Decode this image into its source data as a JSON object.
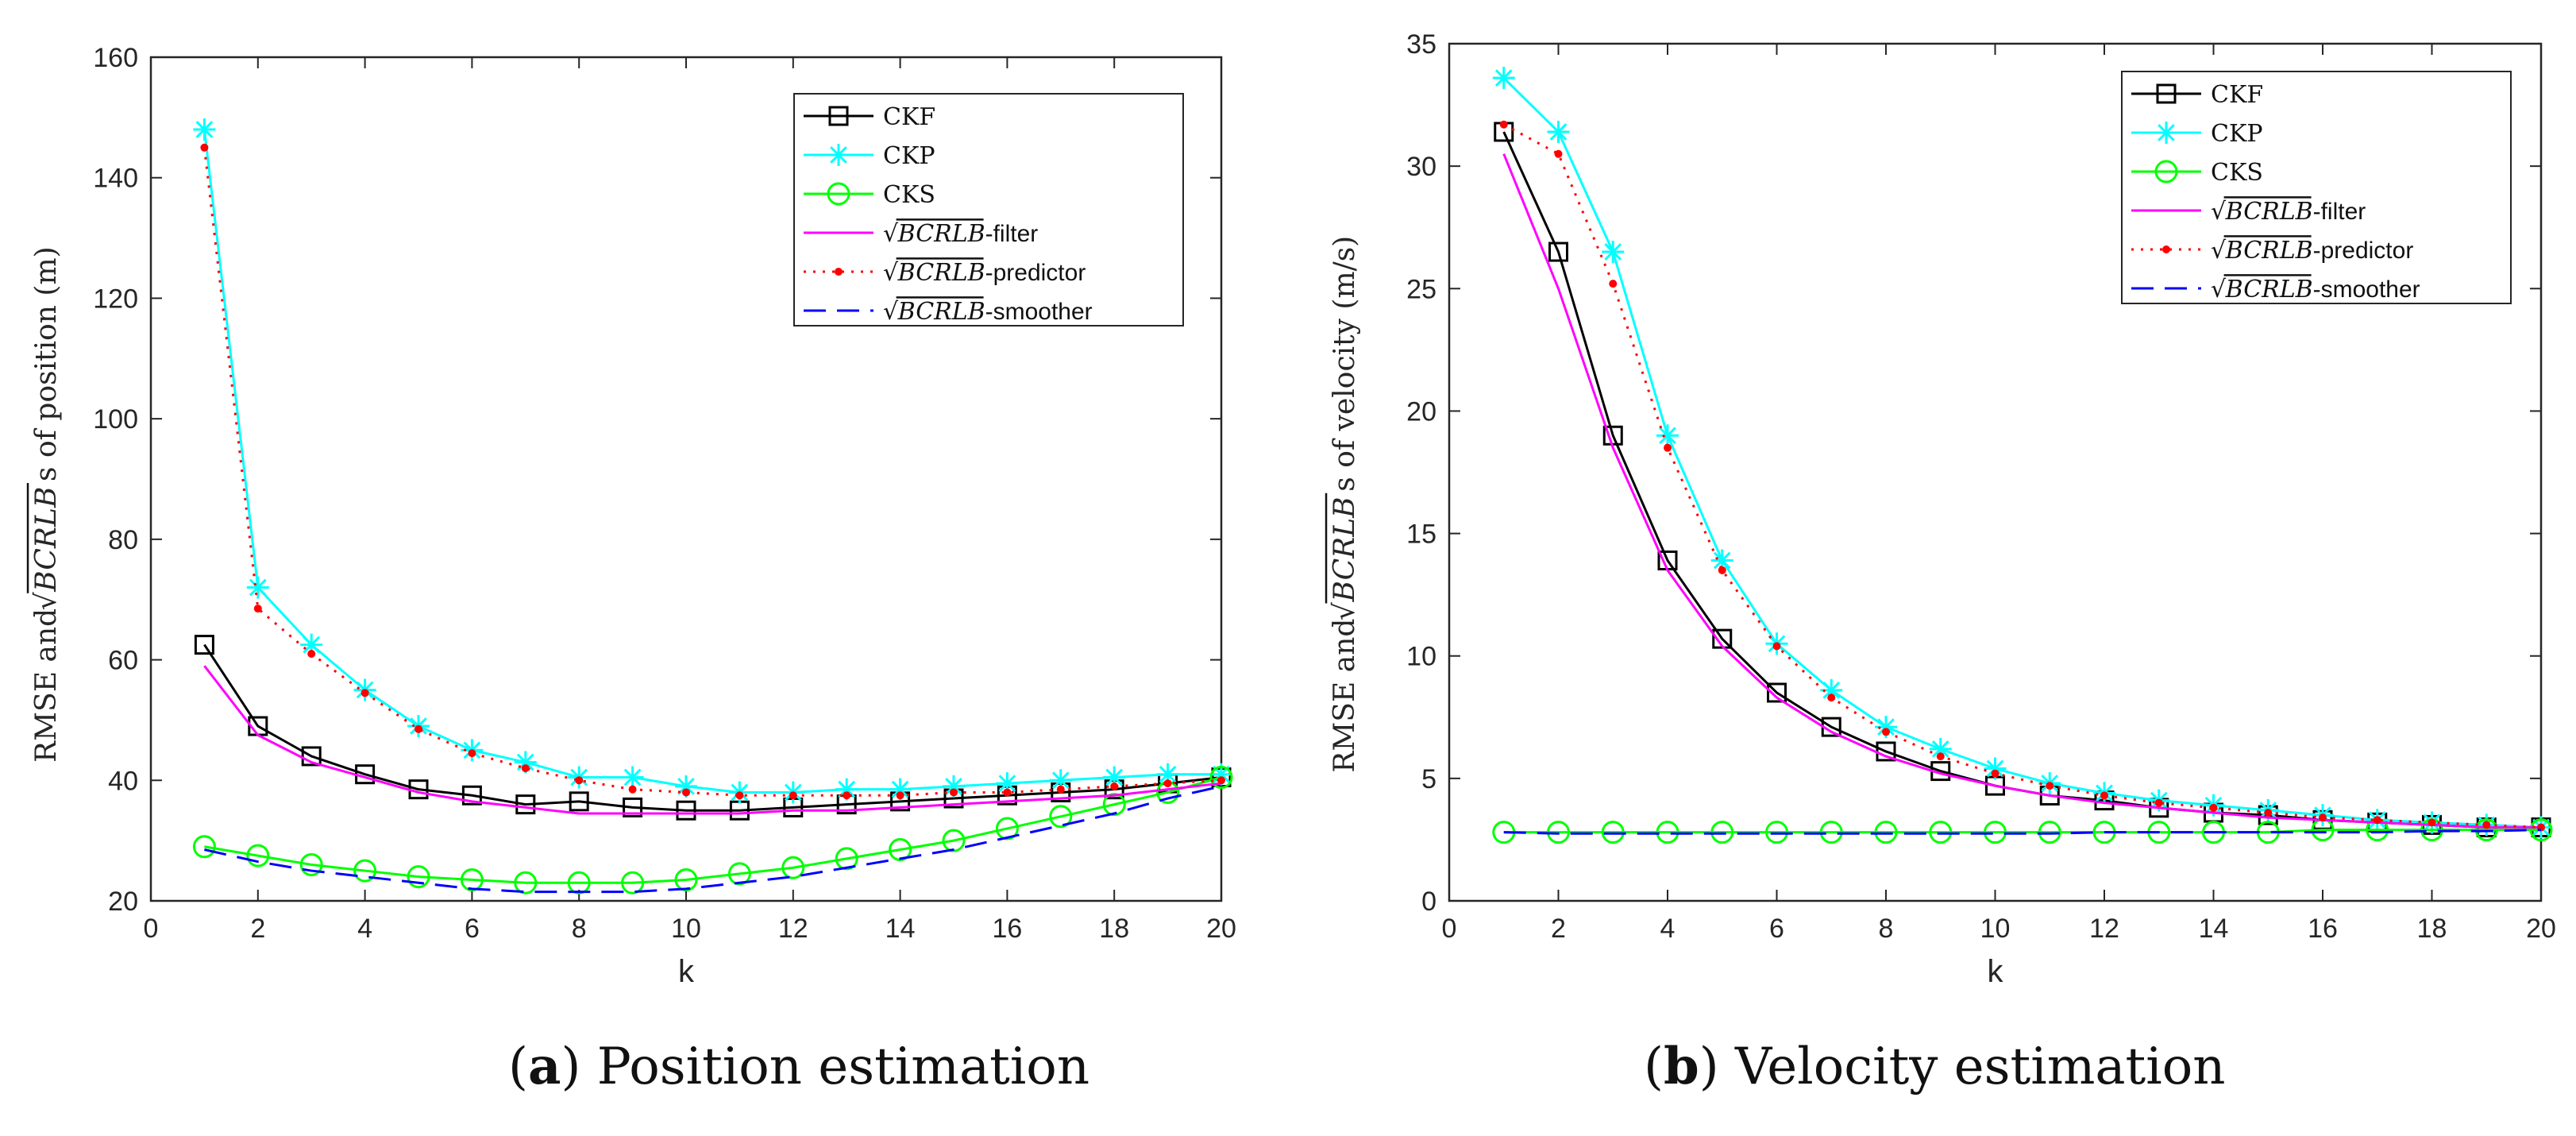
{
  "captions": [
    {
      "letter": "a",
      "text": " Position estimation"
    },
    {
      "letter": "b",
      "text": " Velocity estimation"
    }
  ],
  "legend_labels": [
    "CKF",
    "CKP",
    "CKS",
    "-filter",
    "-predictor",
    "-smoother"
  ],
  "legend_sqrt_text": "BCRLB",
  "colors": {
    "CKF": "#000000",
    "CKP": "#00FFFF",
    "CKS": "#00FF00",
    "filter": "#FF00FF",
    "predictor": "#FF0000",
    "smoother": "#0000FF"
  },
  "chart_data": [
    {
      "type": "line",
      "id": "position",
      "xlabel": "k",
      "ylabel_prefix": "RMSE and ",
      "ylabel_suffix": "s of position (m)",
      "xlim": [
        0,
        20
      ],
      "ylim": [
        20,
        160
      ],
      "xticks": [
        0,
        2,
        4,
        6,
        8,
        10,
        12,
        14,
        16,
        18,
        20
      ],
      "yticks": [
        20,
        40,
        60,
        80,
        100,
        120,
        140,
        160
      ],
      "legend_position": "top-right",
      "x": [
        1,
        2,
        3,
        4,
        5,
        6,
        7,
        8,
        9,
        10,
        11,
        12,
        13,
        14,
        15,
        16,
        17,
        18,
        19,
        20
      ],
      "series": [
        {
          "name": "CKF",
          "values": [
            62.5,
            49,
            44,
            41,
            38.5,
            37.5,
            36,
            36.5,
            35.5,
            35,
            35,
            35.5,
            36,
            36.5,
            37,
            37.5,
            38,
            38.5,
            39.5,
            40.5
          ]
        },
        {
          "name": "CKP",
          "values": [
            148,
            72,
            62.5,
            55,
            49,
            45,
            43,
            40.5,
            40.5,
            39,
            38,
            38,
            38.5,
            38.5,
            39,
            39.5,
            40,
            40.5,
            41,
            41
          ]
        },
        {
          "name": "CKS",
          "values": [
            29,
            27.5,
            26,
            25,
            24,
            23.5,
            23,
            23,
            23,
            23.5,
            24.5,
            25.5,
            27,
            28.5,
            30,
            32,
            34,
            36,
            38,
            40.5
          ]
        },
        {
          "name": "BCRLB-filter",
          "values": [
            59,
            47.5,
            43,
            40.5,
            38,
            36.5,
            35.5,
            34.5,
            34.5,
            34.5,
            34.5,
            35,
            35,
            35.5,
            36,
            36.5,
            37,
            37.5,
            38.5,
            39.5
          ]
        },
        {
          "name": "BCRLB-predictor",
          "values": [
            145,
            68.5,
            61,
            54.5,
            48.5,
            44.5,
            42,
            40,
            38.5,
            38,
            37.5,
            37.5,
            37.5,
            37.5,
            38,
            38,
            38.5,
            39,
            39.5,
            40
          ]
        },
        {
          "name": "BCRLB-smoother",
          "values": [
            28.5,
            26.5,
            25,
            24,
            23,
            22,
            21.5,
            21.5,
            21.5,
            22,
            23,
            24,
            25.5,
            27,
            28.5,
            30.5,
            32.5,
            34.5,
            37,
            39
          ]
        }
      ]
    },
    {
      "type": "line",
      "id": "velocity",
      "xlabel": "k",
      "ylabel_prefix": "RMSE and ",
      "ylabel_suffix": "s of velocity (m/s)",
      "xlim": [
        0,
        20
      ],
      "ylim": [
        0,
        35
      ],
      "xticks": [
        0,
        2,
        4,
        6,
        8,
        10,
        12,
        14,
        16,
        18,
        20
      ],
      "yticks": [
        0,
        5,
        10,
        15,
        20,
        25,
        30,
        35
      ],
      "legend_position": "top-right",
      "x": [
        1,
        2,
        3,
        4,
        5,
        6,
        7,
        8,
        9,
        10,
        11,
        12,
        13,
        14,
        15,
        16,
        17,
        18,
        19,
        20
      ],
      "series": [
        {
          "name": "CKF",
          "values": [
            31.4,
            26.5,
            19,
            13.9,
            10.7,
            8.5,
            7.1,
            6.1,
            5.3,
            4.7,
            4.3,
            4.1,
            3.8,
            3.6,
            3.5,
            3.3,
            3.2,
            3.1,
            3,
            3
          ]
        },
        {
          "name": "CKP",
          "values": [
            33.6,
            31.4,
            26.5,
            19,
            13.9,
            10.5,
            8.6,
            7.1,
            6.2,
            5.4,
            4.8,
            4.4,
            4.1,
            3.9,
            3.7,
            3.5,
            3.3,
            3.2,
            3.1,
            3
          ]
        },
        {
          "name": "CKS",
          "values": [
            2.8,
            2.8,
            2.8,
            2.8,
            2.8,
            2.8,
            2.8,
            2.8,
            2.8,
            2.8,
            2.8,
            2.8,
            2.8,
            2.8,
            2.8,
            2.9,
            2.9,
            2.9,
            2.9,
            2.9
          ]
        },
        {
          "name": "BCRLB-filter",
          "values": [
            30.5,
            25,
            18.5,
            13.5,
            10.4,
            8.3,
            6.9,
            5.9,
            5.2,
            4.7,
            4.3,
            4,
            3.8,
            3.6,
            3.4,
            3.3,
            3.2,
            3.1,
            3,
            3
          ]
        },
        {
          "name": "BCRLB-predictor",
          "values": [
            31.7,
            30.5,
            25.2,
            18.5,
            13.5,
            10.4,
            8.3,
            6.9,
            5.9,
            5.2,
            4.7,
            4.3,
            4,
            3.8,
            3.6,
            3.4,
            3.3,
            3.2,
            3.1,
            3
          ]
        },
        {
          "name": "BCRLB-smoother",
          "values": [
            2.8,
            2.75,
            2.75,
            2.75,
            2.75,
            2.75,
            2.75,
            2.75,
            2.75,
            2.75,
            2.75,
            2.8,
            2.8,
            2.8,
            2.8,
            2.8,
            2.8,
            2.85,
            2.85,
            2.9
          ]
        }
      ]
    }
  ]
}
